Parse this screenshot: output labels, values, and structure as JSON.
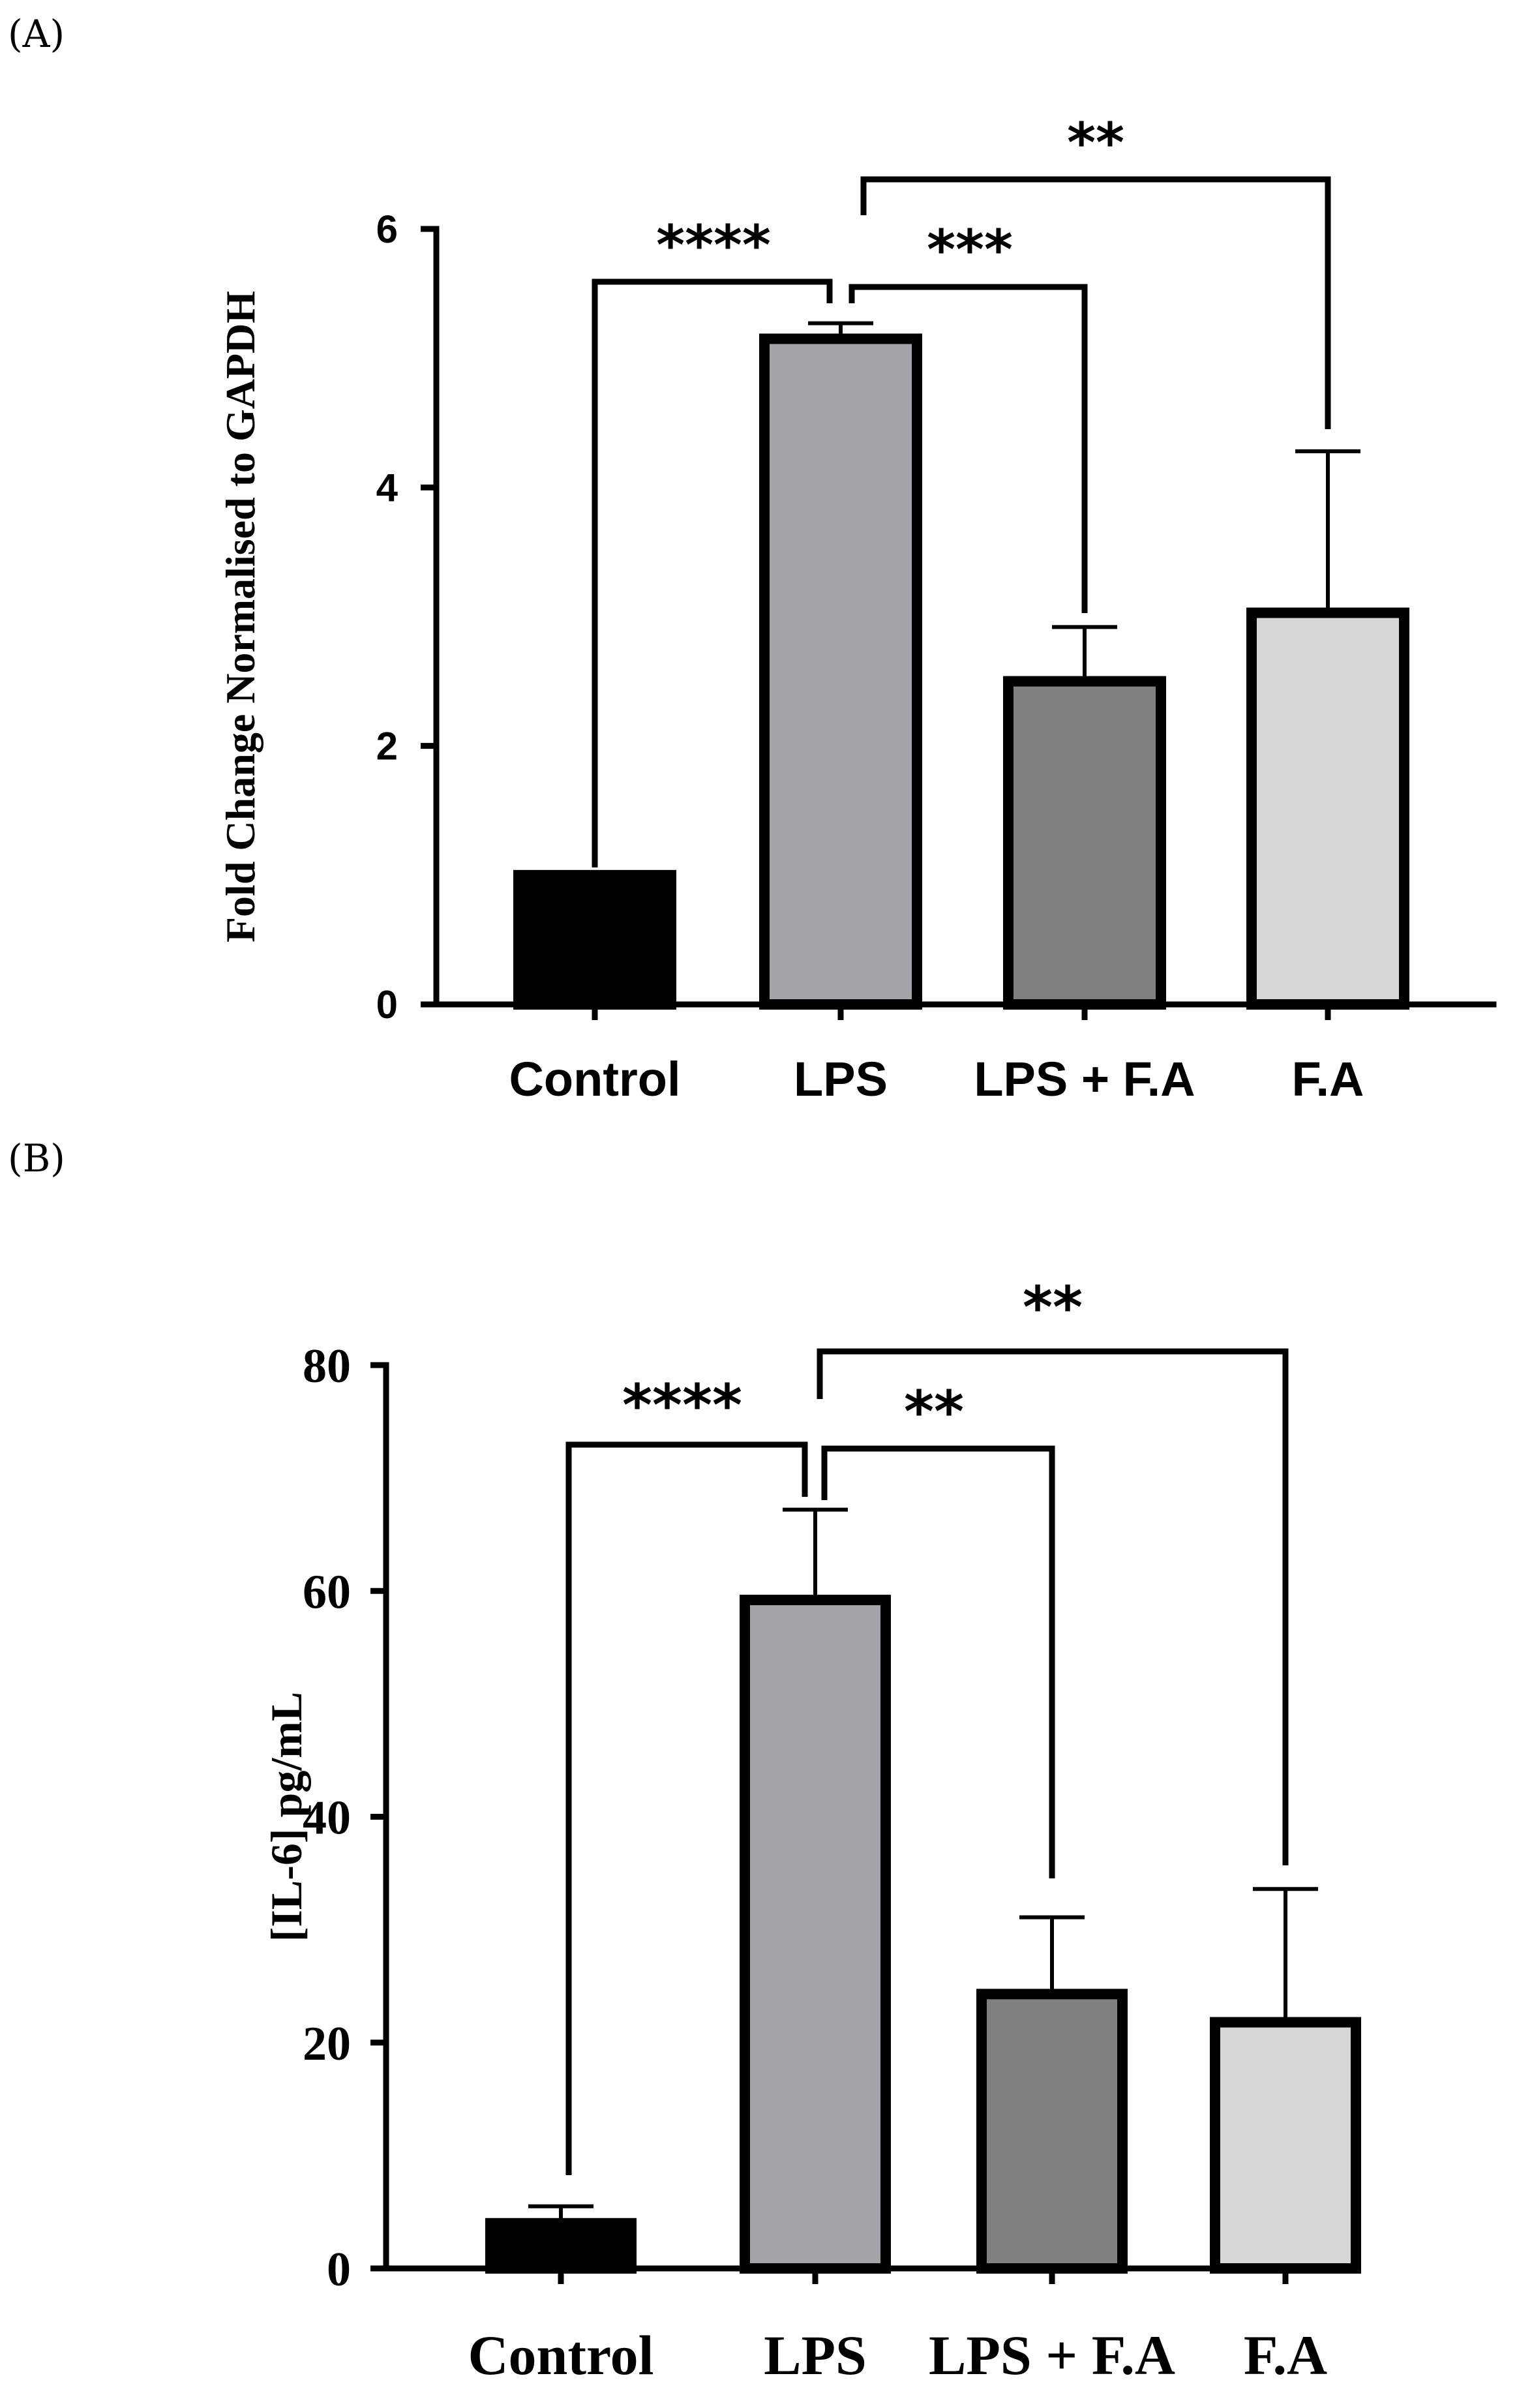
{
  "chart_data": [
    {
      "panel": "(A)",
      "type": "bar",
      "title": "",
      "xlabel": "",
      "ylabel": "Fold Change Normalised to GAPDH",
      "ylim": [
        0,
        6
      ],
      "yticks": [
        "0",
        "2",
        "4",
        "6"
      ],
      "categories": [
        "Control",
        "LPS",
        "LPS + F.A",
        "F.A"
      ],
      "values": [
        1.0,
        5.15,
        2.5,
        3.03
      ],
      "errors": [
        0.02,
        0.12,
        0.42,
        1.25
      ],
      "colors": [
        "#000000",
        "#a4a3a8",
        "#808080",
        "#d7d7d7"
      ],
      "significance": [
        {
          "from": "Control",
          "to": "LPS",
          "label": "****"
        },
        {
          "from": "LPS",
          "to": "LPS + F.A",
          "label": "***"
        },
        {
          "from": "LPS",
          "to": "F.A",
          "label": "**"
        }
      ]
    },
    {
      "panel": "(B)",
      "type": "bar",
      "title": "",
      "xlabel": "",
      "ylabel": "[IL-6] pg/mL",
      "ylim": [
        0,
        80
      ],
      "yticks": [
        "0",
        "20",
        "40",
        "60",
        "80"
      ],
      "categories": [
        "Control",
        "LPS",
        "LPS + F.A",
        "F.A"
      ],
      "values": [
        4.0,
        59.2,
        24.3,
        21.8
      ],
      "errors": [
        1.5,
        8.0,
        6.8,
        11.8
      ],
      "colors": [
        "#000000",
        "#a4a3a8",
        "#808080",
        "#d7d7d7"
      ],
      "significance": [
        {
          "from": "Control",
          "to": "LPS",
          "label": "****"
        },
        {
          "from": "LPS",
          "to": "LPS + F.A",
          "label": "**"
        },
        {
          "from": "LPS",
          "to": "F.A",
          "label": "**"
        }
      ]
    }
  ]
}
